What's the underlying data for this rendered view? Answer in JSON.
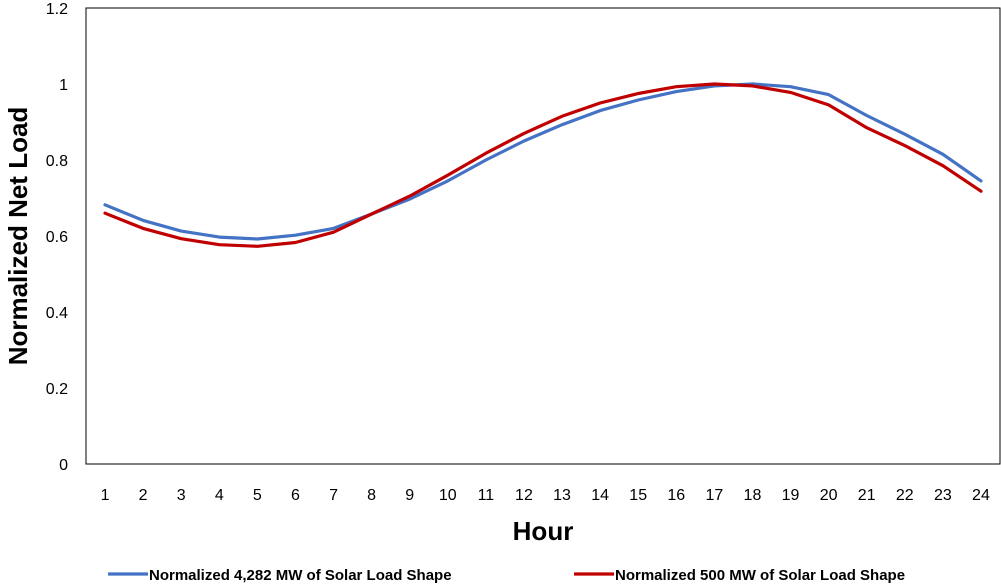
{
  "chart_data": {
    "type": "line",
    "title": "",
    "xlabel": "Hour",
    "ylabel": "Normalized Net Load",
    "ylim": [
      0,
      1.2
    ],
    "yticks": [
      "0",
      "0.2",
      "0.4",
      "0.6",
      "0.8",
      "1",
      "1.2"
    ],
    "categories": [
      "1",
      "2",
      "3",
      "4",
      "5",
      "6",
      "7",
      "8",
      "9",
      "10",
      "11",
      "12",
      "13",
      "14",
      "15",
      "16",
      "17",
      "18",
      "19",
      "20",
      "21",
      "22",
      "23",
      "24"
    ],
    "grid": false,
    "legend_position": "bottom",
    "series": [
      {
        "name": "Normalized 4,282 MW of Solar Load Shape",
        "color": "#4472C4",
        "values": [
          0.682,
          0.641,
          0.613,
          0.597,
          0.592,
          0.602,
          0.62,
          0.658,
          0.697,
          0.745,
          0.8,
          0.85,
          0.893,
          0.93,
          0.958,
          0.98,
          0.995,
          1.0,
          0.993,
          0.972,
          0.917,
          0.868,
          0.815,
          0.745
        ]
      },
      {
        "name": "Normalized 500 MW of Solar Load Shape",
        "color": "#C00000",
        "values": [
          0.66,
          0.62,
          0.593,
          0.577,
          0.573,
          0.583,
          0.61,
          0.658,
          0.705,
          0.76,
          0.818,
          0.87,
          0.915,
          0.95,
          0.975,
          0.993,
          1.0,
          0.995,
          0.978,
          0.945,
          0.885,
          0.838,
          0.785,
          0.718
        ]
      }
    ]
  }
}
